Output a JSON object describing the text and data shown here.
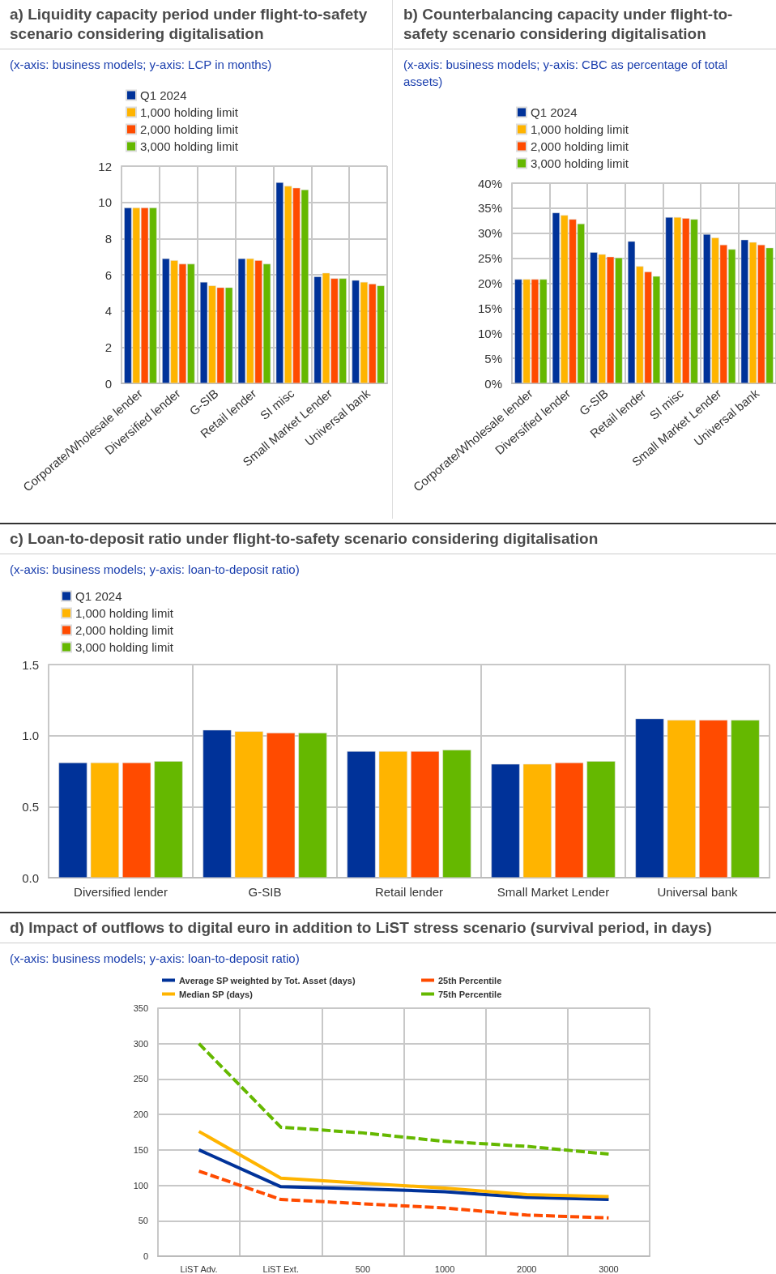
{
  "chart_data": [
    {
      "type": "bar",
      "title": "a) Liquidity capacity period under flight-to-safety scenario considering digitalisation",
      "subtitle": "(x-axis: business models; y-axis: LCP in months)",
      "categories": [
        "Corporate/Wholesale lender",
        "Diversified lender",
        "G-SIB",
        "Retail lender",
        "SI misc",
        "Small Market Lender",
        "Universal bank"
      ],
      "series": [
        {
          "name": "Q1 2024",
          "color": "#003299",
          "values": [
            9.7,
            6.9,
            5.6,
            6.9,
            11.1,
            5.9,
            5.7
          ]
        },
        {
          "name": "1,000 holding limit",
          "color": "#ffb400",
          "values": [
            9.7,
            6.8,
            5.4,
            6.9,
            10.9,
            6.1,
            5.6
          ]
        },
        {
          "name": "2,000 holding limit",
          "color": "#ff4b00",
          "values": [
            9.7,
            6.6,
            5.3,
            6.8,
            10.8,
            5.8,
            5.5
          ]
        },
        {
          "name": "3,000 holding limit",
          "color": "#65b800",
          "values": [
            9.7,
            6.6,
            5.3,
            6.6,
            10.7,
            5.8,
            5.4
          ]
        }
      ],
      "ylim": [
        0,
        12
      ],
      "yticks": [
        0,
        2,
        4,
        6,
        8,
        10,
        12
      ],
      "grid": true,
      "legend": "top left"
    },
    {
      "type": "bar",
      "title": "b) Counterbalancing capacity under flight-to-safety scenario considering digitalisation",
      "subtitle": "(x-axis: business models; y-axis: CBC as percentage of total assets)",
      "categories": [
        "Corporate/Wholesale lender",
        "Diversified lender",
        "G-SIB",
        "Retail lender",
        "SI misc",
        "Small Market Lender",
        "Universal bank"
      ],
      "series": [
        {
          "name": "Q1 2024",
          "color": "#003299",
          "values": [
            20.8,
            34.1,
            26.2,
            28.4,
            33.2,
            29.8,
            28.7
          ]
        },
        {
          "name": "1,000 holding limit",
          "color": "#ffb400",
          "values": [
            20.8,
            33.6,
            25.8,
            23.4,
            33.2,
            29.1,
            28.2
          ]
        },
        {
          "name": "2,000 holding limit",
          "color": "#ff4b00",
          "values": [
            20.8,
            32.8,
            25.3,
            22.3,
            33.0,
            27.7,
            27.7
          ]
        },
        {
          "name": "3,000 holding limit",
          "color": "#65b800",
          "values": [
            20.8,
            31.9,
            25.1,
            21.4,
            32.8,
            26.8,
            27.1
          ]
        }
      ],
      "ylim": [
        0,
        40
      ],
      "yticks": [
        {
          "value": 0,
          "label": "0%"
        },
        {
          "value": 5,
          "label": "5%"
        },
        {
          "value": 10,
          "label": "10%"
        },
        {
          "value": 15,
          "label": "15%"
        },
        {
          "value": 20,
          "label": "20%"
        },
        {
          "value": 25,
          "label": "25%"
        },
        {
          "value": 30,
          "label": "30%"
        },
        {
          "value": 35,
          "label": "35%"
        },
        {
          "value": 40,
          "label": "40%"
        }
      ],
      "grid": true,
      "legend": "top left"
    },
    {
      "type": "bar",
      "title": "c) Loan-to-deposit ratio under flight-to-safety scenario considering digitalisation",
      "subtitle": "(x-axis: business models; y-axis: loan-to-deposit ratio)",
      "categories": [
        "Diversified lender",
        "G-SIB",
        "Retail lender",
        "Small Market Lender",
        "Universal bank"
      ],
      "series": [
        {
          "name": "Q1 2024",
          "color": "#003299",
          "values": [
            0.81,
            1.04,
            0.89,
            0.8,
            1.12
          ]
        },
        {
          "name": "1,000 holding limit",
          "color": "#ffb400",
          "values": [
            0.81,
            1.03,
            0.89,
            0.8,
            1.11
          ]
        },
        {
          "name": "2,000 holding limit",
          "color": "#ff4b00",
          "values": [
            0.81,
            1.02,
            0.89,
            0.81,
            1.11
          ]
        },
        {
          "name": "3,000 holding limit",
          "color": "#65b800",
          "values": [
            0.82,
            1.02,
            0.9,
            0.82,
            1.11
          ]
        }
      ],
      "ylim": [
        0,
        1.5
      ],
      "yticks": [
        {
          "value": 0,
          "label": "0.0"
        },
        {
          "value": 0.5,
          "label": "0.5"
        },
        {
          "value": 1,
          "label": "1.0"
        },
        {
          "value": 1.5,
          "label": "1.5"
        }
      ],
      "grid": true,
      "legend": "top left"
    },
    {
      "type": "line",
      "title": "d) Impact of outflows to digital euro in addition to LiST stress scenario (survival period, in days)",
      "subtitle": "(x-axis: business models; y-axis: loan-to-deposit ratio)",
      "categories": [
        "LiST Adv.",
        "LiST Ext.",
        "500",
        "1000",
        "2000",
        "3000"
      ],
      "series": [
        {
          "name": "Average SP weighted by Tot. Asset (days)",
          "color": "#003299",
          "line_style": "solid",
          "values": [
            150,
            98,
            95,
            91,
            83,
            80
          ]
        },
        {
          "name": "Median SP (days)",
          "color": "#ffb400",
          "line_style": "solid",
          "values": [
            176,
            110,
            103,
            96,
            87,
            84
          ]
        },
        {
          "name": "25th Percentile",
          "color": "#ff4b00",
          "line_style": "dashed",
          "values": [
            120,
            80,
            74,
            68,
            58,
            54
          ]
        },
        {
          "name": "75th Percentile",
          "color": "#65b800",
          "line_style": "dashed",
          "values": [
            300,
            182,
            174,
            162,
            155,
            144
          ]
        }
      ],
      "ylim": [
        0,
        350
      ],
      "yticks": [
        0,
        50,
        100,
        150,
        200,
        250,
        300,
        350
      ],
      "grid": true,
      "legend": "top",
      "marker": "none"
    }
  ]
}
